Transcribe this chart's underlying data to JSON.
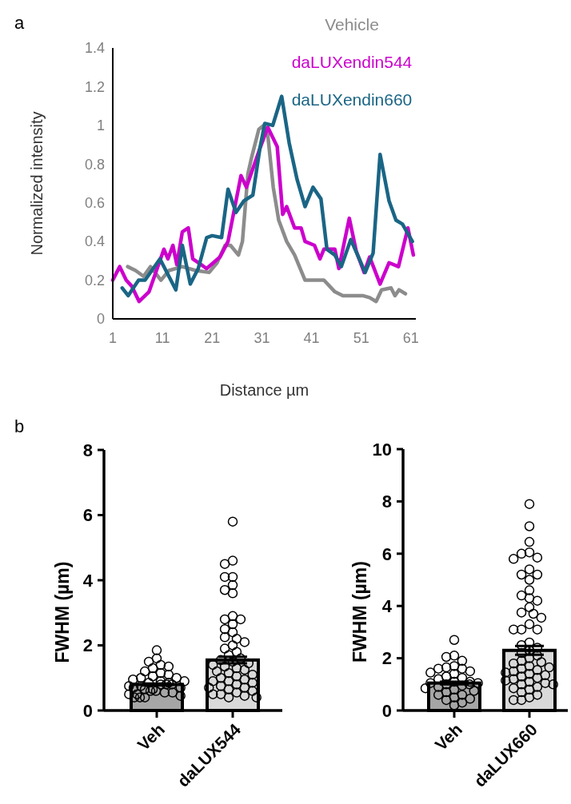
{
  "chart_data": [
    {
      "type": "line",
      "xlabel": "Distance µm",
      "ylabel": "Normalized intensity",
      "annotations": [
        "a"
      ],
      "xlim": [
        1,
        62
      ],
      "ylim": [
        0,
        1.4
      ],
      "xticks": [
        1,
        11,
        21,
        31,
        41,
        51,
        61
      ],
      "yticks": [
        0,
        0.2,
        0.4,
        0.6,
        0.8,
        1,
        1.2,
        1.4
      ],
      "legend": "top right",
      "line_style": "solid",
      "series": [
        {
          "name": "Vehicle",
          "color": "#8c8c8c",
          "x": [
            4,
            5.6,
            7.2,
            8.6,
            10.7,
            12.3,
            15,
            17.7,
            20.4,
            22,
            23.6,
            24.7,
            26.3,
            27.1,
            28.2,
            29,
            30.4,
            31.4,
            32.2,
            33.3,
            34.4,
            36,
            37.6,
            39.7,
            41.9,
            43.5,
            45.7,
            47.3,
            50,
            51.3,
            52.7,
            54,
            55.1,
            57,
            57.8,
            58.6,
            59.9
          ],
          "values": [
            0.27,
            0.25,
            0.22,
            0.27,
            0.2,
            0.25,
            0.27,
            0.25,
            0.24,
            0.29,
            0.38,
            0.38,
            0.33,
            0.4,
            0.75,
            0.84,
            0.98,
            1.0,
            0.95,
            0.68,
            0.51,
            0.4,
            0.33,
            0.2,
            0.2,
            0.2,
            0.14,
            0.12,
            0.12,
            0.12,
            0.11,
            0.09,
            0.15,
            0.16,
            0.12,
            0.15,
            0.13
          ]
        },
        {
          "name": "daLUXendin544",
          "color": "#cc00cc",
          "x": [
            1,
            2.4,
            3.7,
            4.8,
            6.3,
            8.3,
            11.3,
            12.1,
            13.1,
            13.9,
            15,
            16.2,
            17.1,
            19.9,
            22.6,
            24.2,
            26.8,
            27.9,
            30.6,
            32.2,
            34.1,
            35.2,
            36,
            37.6,
            38.9,
            39.7,
            41.6,
            42.7,
            43.5,
            45.7,
            46.5,
            48.6,
            50,
            51.6,
            52.7,
            54.8,
            56.6,
            58.5,
            60.4,
            61.5
          ],
          "values": [
            0.2,
            0.27,
            0.2,
            0.17,
            0.09,
            0.14,
            0.36,
            0.31,
            0.38,
            0.28,
            0.45,
            0.47,
            0.31,
            0.26,
            0.32,
            0.4,
            0.74,
            0.68,
            0.88,
            0.99,
            0.89,
            0.54,
            0.58,
            0.47,
            0.47,
            0.4,
            0.38,
            0.31,
            0.36,
            0.36,
            0.26,
            0.52,
            0.35,
            0.24,
            0.32,
            0.18,
            0.29,
            0.27,
            0.47,
            0.33
          ]
        },
        {
          "name": "daLUXendin660",
          "color": "#1a6585",
          "x": [
            2.9,
            4.1,
            6.2,
            7.5,
            10.5,
            13.7,
            15,
            16.6,
            18.2,
            19.9,
            21,
            22.9,
            24.2,
            25.8,
            27.4,
            29.2,
            30.6,
            31.6,
            33.2,
            35,
            36.5,
            38.1,
            39.7,
            41.3,
            42.9,
            44.1,
            45.7,
            47,
            48.9,
            51.8,
            53.4,
            54.8,
            56.6,
            58,
            59.3,
            61.3
          ],
          "values": [
            0.16,
            0.12,
            0.2,
            0.2,
            0.31,
            0.15,
            0.38,
            0.18,
            0.26,
            0.42,
            0.43,
            0.42,
            0.67,
            0.55,
            0.61,
            0.64,
            0.88,
            1.01,
            1.0,
            1.15,
            0.91,
            0.72,
            0.58,
            0.68,
            0.62,
            0.36,
            0.33,
            0.27,
            0.41,
            0.24,
            0.34,
            0.85,
            0.61,
            0.51,
            0.49,
            0.4
          ]
        }
      ]
    },
    {
      "type": "bar",
      "ylabel": "FWHM (µm)",
      "annotations": [
        "b"
      ],
      "categories": [
        "Veh",
        "daLUX544"
      ],
      "ylim": [
        0,
        8
      ],
      "yticks": [
        0,
        2,
        4,
        6,
        8
      ],
      "marker": "circle",
      "series": [
        {
          "type": "bar",
          "values": [
            0.8,
            1.55
          ],
          "colors": [
            "#a6a6a6",
            "#d9d9d9"
          ],
          "errors": [
            0.03,
            0.1
          ]
        },
        {
          "type": "scatter",
          "color": "#000000",
          "x": [
            "Veh",
            "Veh",
            "Veh",
            "Veh",
            "Veh",
            "Veh",
            "Veh",
            "Veh",
            "Veh",
            "Veh",
            "Veh",
            "Veh",
            "Veh",
            "Veh",
            "Veh",
            "Veh",
            "Veh",
            "Veh",
            "Veh",
            "Veh",
            "Veh",
            "Veh",
            "Veh",
            "Veh",
            "Veh",
            "Veh",
            "Veh",
            "Veh",
            "Veh",
            "Veh",
            "Veh",
            "Veh",
            "Veh",
            "Veh",
            "Veh",
            "Veh",
            "daLUX544",
            "daLUX544",
            "daLUX544",
            "daLUX544",
            "daLUX544",
            "daLUX544",
            "daLUX544",
            "daLUX544",
            "daLUX544",
            "daLUX544",
            "daLUX544",
            "daLUX544",
            "daLUX544",
            "daLUX544",
            "daLUX544",
            "daLUX544",
            "daLUX544",
            "daLUX544",
            "daLUX544",
            "daLUX544",
            "daLUX544",
            "daLUX544",
            "daLUX544",
            "daLUX544",
            "daLUX544",
            "daLUX544",
            "daLUX544",
            "daLUX544",
            "daLUX544",
            "daLUX544",
            "daLUX544",
            "daLUX544",
            "daLUX544",
            "daLUX544",
            "daLUX544",
            "daLUX544",
            "daLUX544",
            "daLUX544",
            "daLUX544",
            "daLUX544",
            "daLUX544",
            "daLUX544",
            "daLUX544",
            "daLUX544",
            "daLUX544",
            "daLUX544",
            "daLUX544",
            "daLUX544",
            "daLUX544",
            "daLUX544"
          ],
          "values": [
            1.85,
            1.6,
            1.5,
            1.4,
            1.35,
            1.3,
            1.2,
            1.15,
            1.1,
            1.05,
            1.0,
            1.0,
            0.95,
            0.9,
            0.9,
            0.85,
            0.85,
            0.8,
            0.8,
            0.8,
            0.75,
            0.75,
            0.7,
            0.7,
            0.65,
            0.65,
            0.6,
            0.6,
            0.55,
            0.55,
            0.5,
            0.5,
            0.45,
            0.4,
            0.4,
            0.4,
            5.8,
            4.6,
            4.5,
            4.1,
            4.1,
            3.85,
            3.7,
            3.6,
            2.9,
            2.8,
            2.8,
            2.65,
            2.5,
            2.4,
            2.25,
            2.2,
            2.1,
            2.0,
            1.9,
            1.8,
            1.7,
            1.6,
            1.55,
            1.5,
            1.45,
            1.4,
            1.35,
            1.3,
            1.25,
            1.2,
            1.15,
            1.1,
            1.05,
            1.0,
            0.95,
            0.9,
            0.9,
            0.85,
            0.8,
            0.75,
            0.7,
            0.7,
            0.65,
            0.6,
            0.55,
            0.5,
            0.5,
            0.45,
            0.4,
            0.4
          ]
        }
      ]
    },
    {
      "type": "bar",
      "ylabel": "FWHM (µm)",
      "categories": [
        "Veh",
        "daLUX660"
      ],
      "ylim": [
        0,
        10
      ],
      "yticks": [
        0,
        2,
        4,
        6,
        8,
        10
      ],
      "marker": "circle",
      "series": [
        {
          "type": "bar",
          "values": [
            1.05,
            2.3
          ],
          "colors": [
            "#a6a6a6",
            "#d9d9d9"
          ],
          "errors": [
            0.05,
            0.17
          ]
        },
        {
          "type": "scatter",
          "color": "#000000",
          "x": [
            "Veh",
            "Veh",
            "Veh",
            "Veh",
            "Veh",
            "Veh",
            "Veh",
            "Veh",
            "Veh",
            "Veh",
            "Veh",
            "Veh",
            "Veh",
            "Veh",
            "Veh",
            "Veh",
            "Veh",
            "Veh",
            "Veh",
            "Veh",
            "Veh",
            "Veh",
            "Veh",
            "Veh",
            "Veh",
            "Veh",
            "Veh",
            "Veh",
            "Veh",
            "Veh",
            "Veh",
            "Veh",
            "Veh",
            "daLUX660",
            "daLUX660",
            "daLUX660",
            "daLUX660",
            "daLUX660",
            "daLUX660",
            "daLUX660",
            "daLUX660",
            "daLUX660",
            "daLUX660",
            "daLUX660",
            "daLUX660",
            "daLUX660",
            "daLUX660",
            "daLUX660",
            "daLUX660",
            "daLUX660",
            "daLUX660",
            "daLUX660",
            "daLUX660",
            "daLUX660",
            "daLUX660",
            "daLUX660",
            "daLUX660",
            "daLUX660",
            "daLUX660",
            "daLUX660",
            "daLUX660",
            "daLUX660",
            "daLUX660",
            "daLUX660",
            "daLUX660",
            "daLUX660",
            "daLUX660",
            "daLUX660",
            "daLUX660",
            "daLUX660",
            "daLUX660",
            "daLUX660",
            "daLUX660",
            "daLUX660",
            "daLUX660",
            "daLUX660",
            "daLUX660",
            "daLUX660",
            "daLUX660",
            "daLUX660",
            "daLUX660",
            "daLUX660",
            "daLUX660",
            "daLUX660",
            "daLUX660",
            "daLUX660",
            "daLUX660",
            "daLUX660",
            "daLUX660",
            "daLUX660"
          ],
          "values": [
            2.7,
            2.1,
            2.05,
            1.9,
            1.7,
            1.65,
            1.6,
            1.6,
            1.5,
            1.45,
            1.4,
            1.3,
            1.25,
            1.2,
            1.1,
            1.1,
            1.05,
            1.05,
            1.0,
            1.0,
            0.95,
            0.9,
            0.85,
            0.8,
            0.75,
            0.7,
            0.6,
            0.6,
            0.5,
            0.45,
            0.4,
            0.3,
            0.2,
            7.9,
            7.05,
            6.45,
            6.05,
            6.0,
            5.85,
            5.8,
            5.4,
            5.2,
            5.2,
            5.0,
            4.6,
            4.4,
            4.3,
            4.2,
            3.95,
            3.75,
            3.7,
            3.55,
            3.3,
            3.1,
            3.1,
            3.1,
            2.6,
            2.5,
            2.4,
            2.3,
            2.2,
            2.1,
            2.0,
            1.9,
            1.85,
            1.8,
            1.7,
            1.65,
            1.6,
            1.55,
            1.5,
            1.45,
            1.4,
            1.35,
            1.3,
            1.25,
            1.2,
            1.15,
            1.1,
            1.05,
            1.0,
            1.0,
            0.9,
            0.8,
            0.7,
            0.6,
            0.5,
            0.4,
            0.4,
            0.85
          ]
        }
      ]
    }
  ]
}
